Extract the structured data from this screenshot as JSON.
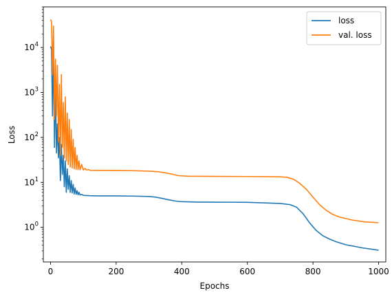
{
  "chart_data": {
    "type": "line",
    "title": "",
    "xlabel": "Epochs",
    "ylabel": "Loss",
    "xlim": [
      -22,
      1022
    ],
    "ylim": [
      0.17,
      80000
    ],
    "yscale": "log",
    "grid": false,
    "legend_position": "top-right",
    "x_ticks": [
      0,
      200,
      400,
      600,
      800,
      1000
    ],
    "x_tick_labels": [
      "0",
      "200",
      "400",
      "600",
      "800",
      "1000"
    ],
    "y_ticks": [
      {
        "value": 1,
        "base": "10",
        "exp": "0"
      },
      {
        "value": 10,
        "base": "10",
        "exp": "1"
      },
      {
        "value": 100,
        "base": "10",
        "exp": "2"
      },
      {
        "value": 1000,
        "base": "10",
        "exp": "3"
      },
      {
        "value": 10000,
        "base": "10",
        "exp": "4"
      }
    ],
    "series": [
      {
        "name": "loss",
        "color": "#1f77b4",
        "points": [
          [
            0,
            10500
          ],
          [
            3,
            9000
          ],
          [
            6,
            300
          ],
          [
            9,
            10000
          ],
          [
            12,
            60
          ],
          [
            15,
            1500
          ],
          [
            18,
            45
          ],
          [
            21,
            200
          ],
          [
            24,
            35
          ],
          [
            27,
            100
          ],
          [
            30,
            11
          ],
          [
            33,
            70
          ],
          [
            36,
            15
          ],
          [
            39,
            40
          ],
          [
            42,
            8
          ],
          [
            45,
            30
          ],
          [
            48,
            6
          ],
          [
            51,
            20
          ],
          [
            54,
            7
          ],
          [
            57,
            14
          ],
          [
            60,
            6
          ],
          [
            63,
            11
          ],
          [
            66,
            5.8
          ],
          [
            69,
            9
          ],
          [
            72,
            5.5
          ],
          [
            75,
            7.5
          ],
          [
            78,
            5.4
          ],
          [
            81,
            6.5
          ],
          [
            84,
            5.3
          ],
          [
            87,
            6
          ],
          [
            90,
            5.25
          ],
          [
            95,
            5.4
          ],
          [
            100,
            5.15
          ],
          [
            110,
            5.1
          ],
          [
            120,
            5.05
          ],
          [
            150,
            5.0
          ],
          [
            200,
            5.0
          ],
          [
            250,
            4.95
          ],
          [
            300,
            4.85
          ],
          [
            320,
            4.7
          ],
          [
            340,
            4.4
          ],
          [
            360,
            4.1
          ],
          [
            380,
            3.85
          ],
          [
            400,
            3.72
          ],
          [
            450,
            3.65
          ],
          [
            500,
            3.63
          ],
          [
            550,
            3.62
          ],
          [
            600,
            3.6
          ],
          [
            650,
            3.5
          ],
          [
            700,
            3.4
          ],
          [
            730,
            3.2
          ],
          [
            750,
            2.8
          ],
          [
            770,
            2.0
          ],
          [
            790,
            1.25
          ],
          [
            810,
            0.85
          ],
          [
            830,
            0.65
          ],
          [
            850,
            0.55
          ],
          [
            870,
            0.48
          ],
          [
            900,
            0.41
          ],
          [
            950,
            0.35
          ],
          [
            1000,
            0.31
          ]
        ]
      },
      {
        "name": "val. loss",
        "color": "#ff7f0e",
        "points": [
          [
            0,
            42000
          ],
          [
            3,
            38000
          ],
          [
            6,
            2500
          ],
          [
            9,
            30000
          ],
          [
            12,
            250
          ],
          [
            15,
            5500
          ],
          [
            18,
            300
          ],
          [
            21,
            4000
          ],
          [
            24,
            80
          ],
          [
            27,
            1500
          ],
          [
            30,
            40
          ],
          [
            33,
            2500
          ],
          [
            36,
            60
          ],
          [
            39,
            600
          ],
          [
            42,
            35
          ],
          [
            45,
            800
          ],
          [
            48,
            30
          ],
          [
            51,
            350
          ],
          [
            54,
            25
          ],
          [
            57,
            250
          ],
          [
            60,
            22
          ],
          [
            63,
            150
          ],
          [
            66,
            21
          ],
          [
            69,
            90
          ],
          [
            72,
            20
          ],
          [
            75,
            60
          ],
          [
            78,
            19.5
          ],
          [
            81,
            40
          ],
          [
            84,
            19.2
          ],
          [
            87,
            30
          ],
          [
            90,
            19
          ],
          [
            95,
            25
          ],
          [
            100,
            18.8
          ],
          [
            105,
            20.5
          ],
          [
            110,
            18.7
          ],
          [
            115,
            19.5
          ],
          [
            120,
            18.6
          ],
          [
            150,
            18.5
          ],
          [
            200,
            18.4
          ],
          [
            250,
            18.2
          ],
          [
            300,
            17.8
          ],
          [
            330,
            17.2
          ],
          [
            360,
            15.8
          ],
          [
            390,
            14.1
          ],
          [
            420,
            13.7
          ],
          [
            500,
            13.6
          ],
          [
            600,
            13.5
          ],
          [
            700,
            13.3
          ],
          [
            720,
            13.0
          ],
          [
            740,
            11.8
          ],
          [
            760,
            9.5
          ],
          [
            780,
            7.0
          ],
          [
            800,
            4.7
          ],
          [
            820,
            3.2
          ],
          [
            840,
            2.4
          ],
          [
            860,
            1.95
          ],
          [
            880,
            1.7
          ],
          [
            920,
            1.45
          ],
          [
            960,
            1.32
          ],
          [
            1000,
            1.27
          ]
        ]
      }
    ]
  }
}
